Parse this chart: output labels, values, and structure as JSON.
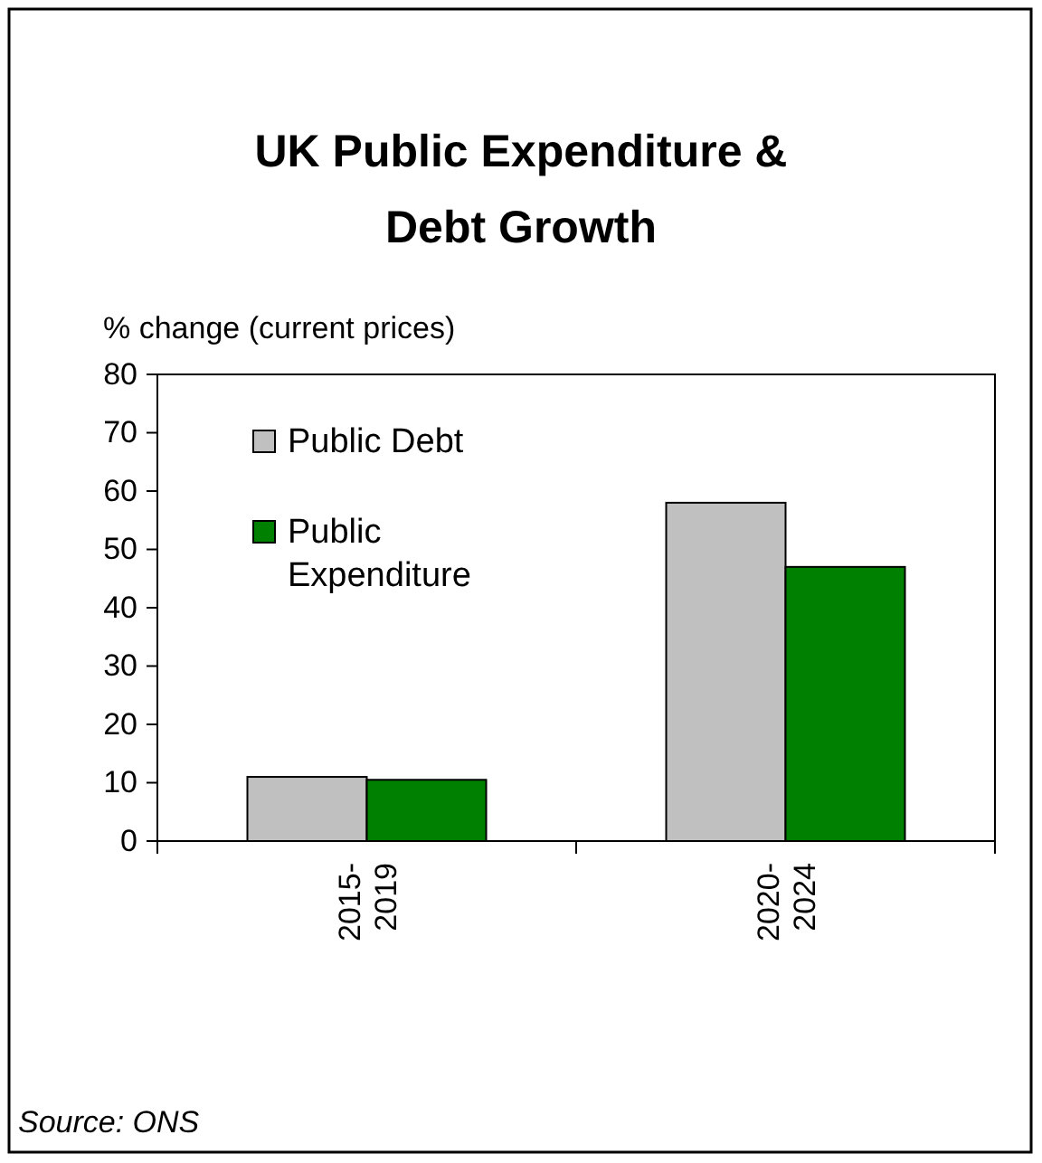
{
  "chart_data": {
    "type": "bar",
    "title": "UK Public Expenditure & Debt Growth",
    "ylabel": "% change (current prices)",
    "categories": [
      "2015-2019",
      "2020-2024"
    ],
    "series": [
      {
        "name": "Public Debt",
        "color": "#c0c0c0",
        "values": [
          11,
          58
        ]
      },
      {
        "name": "Public Expenditure",
        "color": "#008000",
        "values": [
          10.5,
          47
        ]
      }
    ],
    "ylim": [
      0,
      80
    ],
    "yticks": [
      0,
      10,
      20,
      30,
      40,
      50,
      60,
      70,
      80
    ],
    "grid": false,
    "legend": "top left",
    "annotations": [
      "Source: ONS"
    ]
  }
}
